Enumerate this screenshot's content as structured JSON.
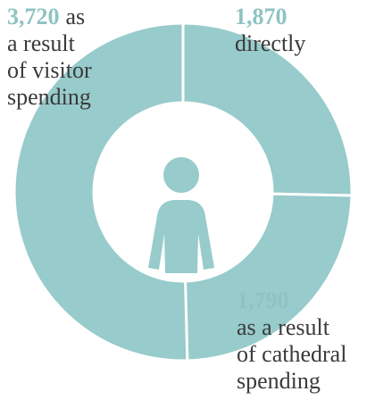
{
  "chart_data": {
    "type": "donut",
    "categories": [
      "directly",
      "as a result\nof cathedral\nspending",
      "as\na result\nof visitor\nspending"
    ],
    "values": [
      1870,
      1790,
      3720
    ],
    "value_labels": [
      "1,870",
      "1,790",
      "3,720"
    ],
    "color": "#98cbcb"
  }
}
